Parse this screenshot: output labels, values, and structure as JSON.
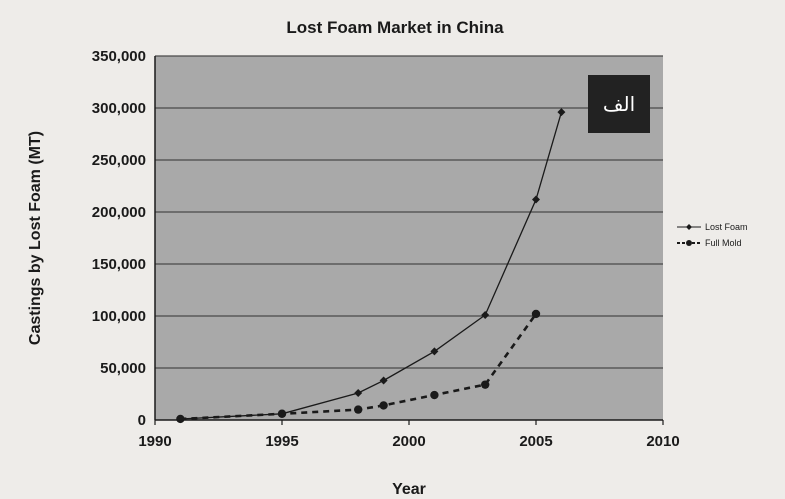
{
  "chart_data": {
    "type": "line",
    "title": "Lost Foam Market in China",
    "xlabel": "Year",
    "ylabel": "Castings by Lost Foam (MT)",
    "xlim": [
      1990,
      2010
    ],
    "ylim": [
      0,
      350000
    ],
    "xticks": [
      1990,
      1995,
      2000,
      2005,
      2010
    ],
    "yticks": [
      0,
      50000,
      100000,
      150000,
      200000,
      250000,
      300000,
      350000
    ],
    "ytick_labels": [
      "0",
      "50,000",
      "100,000",
      "150,000",
      "200,000",
      "250,000",
      "300,000",
      "350,000"
    ],
    "grid": "horizontal",
    "legend_position": "right",
    "badge": "الف",
    "series": [
      {
        "name": "Lost Foam",
        "style": "solid",
        "marker": "diamond",
        "x": [
          1991,
          1995,
          1998,
          1999,
          2001,
          2003,
          2005,
          2006
        ],
        "y": [
          1000,
          6000,
          26000,
          38000,
          66000,
          101000,
          212000,
          296000
        ]
      },
      {
        "name": "Full Mold",
        "style": "dashed",
        "marker": "circle",
        "x": [
          1991,
          1995,
          1998,
          1999,
          2001,
          2003,
          2005
        ],
        "y": [
          1000,
          6000,
          10000,
          14000,
          24000,
          34000,
          102000
        ]
      }
    ],
    "colors": {
      "plot_background": "#a9a9a9",
      "gridline": "#4a4a4a",
      "series": "#1a1a1a",
      "badge_background": "#222222"
    }
  }
}
